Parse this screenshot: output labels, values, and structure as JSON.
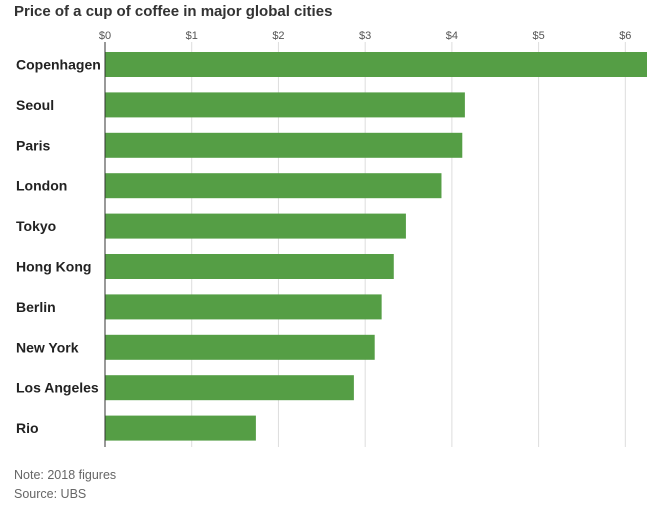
{
  "chart_data": {
    "type": "bar",
    "orientation": "horizontal",
    "title": "Price of a cup of coffee in major global cities",
    "categories": [
      "Copenhagen",
      "Seoul",
      "Paris",
      "London",
      "Tokyo",
      "Hong Kong",
      "Berlin",
      "New York",
      "Los Angeles",
      "Rio"
    ],
    "values": [
      6.25,
      4.15,
      4.12,
      3.88,
      3.47,
      3.33,
      3.19,
      3.11,
      2.87,
      1.74
    ],
    "xlim": [
      0,
      6.25
    ],
    "xticks": [
      0,
      1,
      2,
      3,
      4,
      5,
      6
    ],
    "xtick_labels": [
      "$0",
      "$1",
      "$2",
      "$3",
      "$4",
      "$5",
      "$6"
    ],
    "xlabel": "",
    "ylabel": "",
    "grid": true,
    "bar_color": "#559e45",
    "grid_color": "#dddddd"
  },
  "notes": {
    "note": "Note: 2018 figures",
    "source": "Source: UBS"
  }
}
